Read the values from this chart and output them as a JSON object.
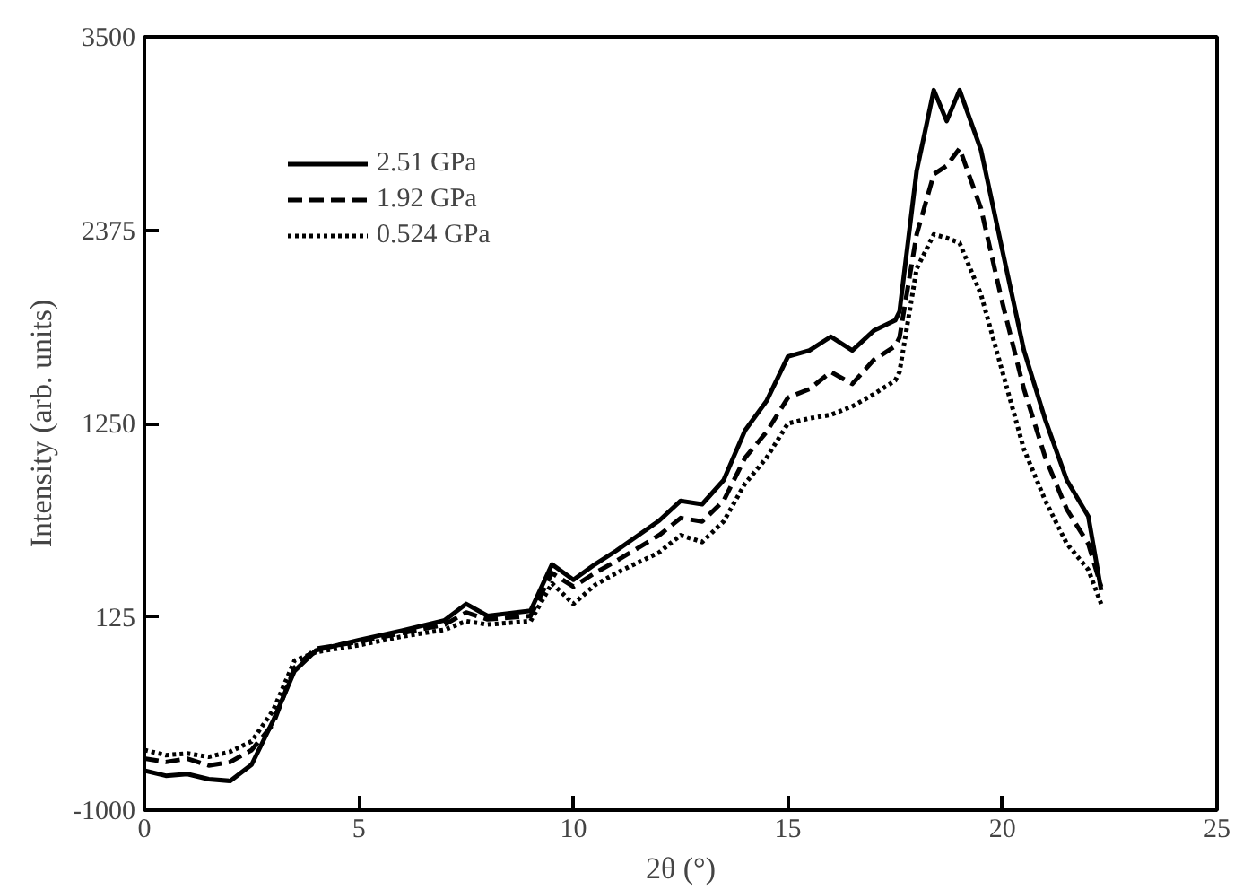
{
  "chart_data": {
    "type": "line",
    "xlabel": "2θ (°)",
    "ylabel": "Intensity (arb. units)",
    "x": [
      0,
      0.5,
      1,
      1.5,
      2,
      2.5,
      3,
      3.5,
      4,
      5,
      6,
      7,
      7.5,
      8,
      9,
      9.5,
      10,
      10.5,
      11,
      12,
      12.5,
      13,
      13.5,
      14,
      14.5,
      15,
      15.5,
      16,
      16.5,
      17,
      17.5,
      17.6,
      18,
      18.4,
      18.7,
      19,
      19.5,
      20,
      20.5,
      21,
      21.5,
      22,
      22.3
    ],
    "series": [
      {
        "name": "2.51 GPa",
        "color": "#000000",
        "line_style": "solid",
        "values": [
          -770,
          -800,
          -790,
          -820,
          -830,
          -735,
          -480,
          -190,
          -70,
          -10,
          45,
          105,
          200,
          130,
          160,
          430,
          340,
          430,
          510,
          685,
          800,
          780,
          920,
          1210,
          1380,
          1640,
          1675,
          1755,
          1675,
          1790,
          1850,
          1900,
          2720,
          3190,
          3010,
          3190,
          2840,
          2255,
          1675,
          1270,
          920,
          710,
          280
        ]
      },
      {
        "name": "1.92 GPa",
        "color": "#000000",
        "line_style": "dashed",
        "values": [
          -700,
          -720,
          -700,
          -740,
          -720,
          -650,
          -500,
          -170,
          -60,
          -20,
          30,
          80,
          150,
          110,
          130,
          380,
          300,
          380,
          450,
          600,
          700,
          680,
          800,
          1050,
          1200,
          1400,
          1450,
          1550,
          1480,
          1620,
          1700,
          1750,
          2350,
          2700,
          2750,
          2850,
          2500,
          1950,
          1450,
          1050,
          750,
          550,
          300
        ]
      },
      {
        "name": "0.524 GPa",
        "color": "#000000",
        "line_style": "dotted",
        "values": [
          -650,
          -680,
          -670,
          -690,
          -660,
          -600,
          -420,
          -130,
          -80,
          -40,
          10,
          50,
          100,
          80,
          100,
          320,
          200,
          310,
          380,
          500,
          600,
          560,
          680,
          900,
          1050,
          1250,
          1280,
          1300,
          1350,
          1420,
          1500,
          1550,
          2150,
          2350,
          2330,
          2300,
          2000,
          1550,
          1100,
          800,
          550,
          400,
          200
        ]
      }
    ],
    "xlim": [
      0,
      25
    ],
    "ylim": [
      -1000,
      3500
    ],
    "xticks": [
      0,
      5,
      10,
      15,
      20,
      25
    ],
    "yticks": [
      -1000,
      125,
      1250,
      2375,
      3500
    ],
    "legend": "top left",
    "grid": false
  }
}
